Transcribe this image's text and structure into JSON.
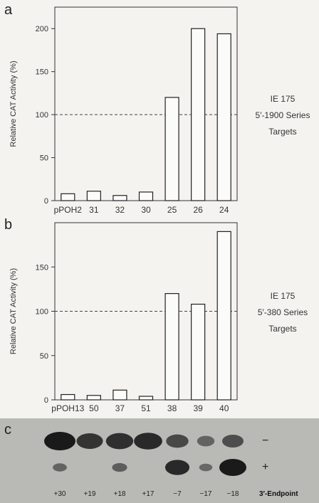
{
  "chart_data": [
    {
      "panel": "a",
      "type": "bar",
      "ylabel": "Relative CAT Activity (%)",
      "ylim": [
        0,
        225
      ],
      "yticks": [
        0,
        50,
        100,
        150,
        200
      ],
      "categories": [
        "pPOH2",
        "31",
        "32",
        "30",
        "25",
        "26",
        "24"
      ],
      "values": [
        8,
        11,
        6,
        10,
        120,
        200,
        194
      ],
      "reference_line": 100,
      "side_labels": [
        "IE 175",
        "5′-1900 Series",
        "Targets"
      ]
    },
    {
      "panel": "b",
      "type": "bar",
      "ylabel": "Relative CAT Activity (%)",
      "ylim": [
        0,
        200
      ],
      "yticks": [
        0,
        50,
        100,
        150
      ],
      "categories": [
        "pPOH13",
        "50",
        "37",
        "51",
        "38",
        "39",
        "40"
      ],
      "values": [
        6,
        5,
        11,
        4,
        120,
        108,
        190
      ],
      "reference_line": 100,
      "side_labels": [
        "IE 175",
        "5′-380 Series",
        "Targets"
      ]
    }
  ],
  "blot": {
    "panel": "c",
    "lanes": [
      "+30",
      "+19",
      "+18",
      "+17",
      "−7",
      "−17",
      "−18"
    ],
    "endpoint_label": "3′-Endpoint",
    "strand_minus": "−",
    "strand_plus": "+",
    "minus_intensity": [
      1.0,
      0.75,
      0.8,
      0.85,
      0.55,
      0.3,
      0.5
    ],
    "plus_intensity": [
      0.3,
      0.0,
      0.35,
      0.0,
      0.85,
      0.25,
      1.0
    ]
  }
}
